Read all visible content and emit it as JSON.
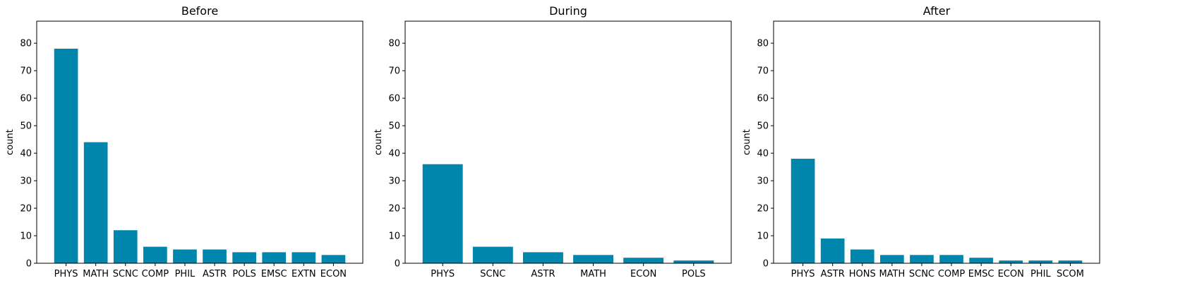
{
  "chart_data": [
    {
      "type": "bar",
      "title": "Before",
      "xlabel": "",
      "ylabel": "count",
      "ylim": [
        0,
        88
      ],
      "yticks": [
        0,
        10,
        20,
        30,
        40,
        50,
        60,
        70,
        80
      ],
      "categories": [
        "PHYS",
        "MATH",
        "SCNC",
        "COMP",
        "PHIL",
        "ASTR",
        "POLS",
        "EMSC",
        "EXTN",
        "ECON"
      ],
      "values": [
        78,
        44,
        12,
        6,
        5,
        5,
        4,
        4,
        4,
        3
      ],
      "color": "#0086ad",
      "grid": false
    },
    {
      "type": "bar",
      "title": "During",
      "xlabel": "",
      "ylabel": "count",
      "ylim": [
        0,
        88
      ],
      "yticks": [
        0,
        10,
        20,
        30,
        40,
        50,
        60,
        70,
        80
      ],
      "categories": [
        "PHYS",
        "SCNC",
        "ASTR",
        "MATH",
        "ECON",
        "POLS"
      ],
      "values": [
        36,
        6,
        4,
        3,
        2,
        1
      ],
      "color": "#0086ad",
      "grid": false
    },
    {
      "type": "bar",
      "title": "After",
      "xlabel": "",
      "ylabel": "count",
      "ylim": [
        0,
        88
      ],
      "yticks": [
        0,
        10,
        20,
        30,
        40,
        50,
        60,
        70,
        80
      ],
      "categories": [
        "PHYS",
        "ASTR",
        "HONS",
        "MATH",
        "SCNC",
        "COMP",
        "EMSC",
        "ECON",
        "PHIL",
        "SCOM"
      ],
      "values": [
        38,
        9,
        5,
        3,
        3,
        3,
        2,
        1,
        1,
        1
      ],
      "color": "#0086ad",
      "grid": false
    }
  ]
}
